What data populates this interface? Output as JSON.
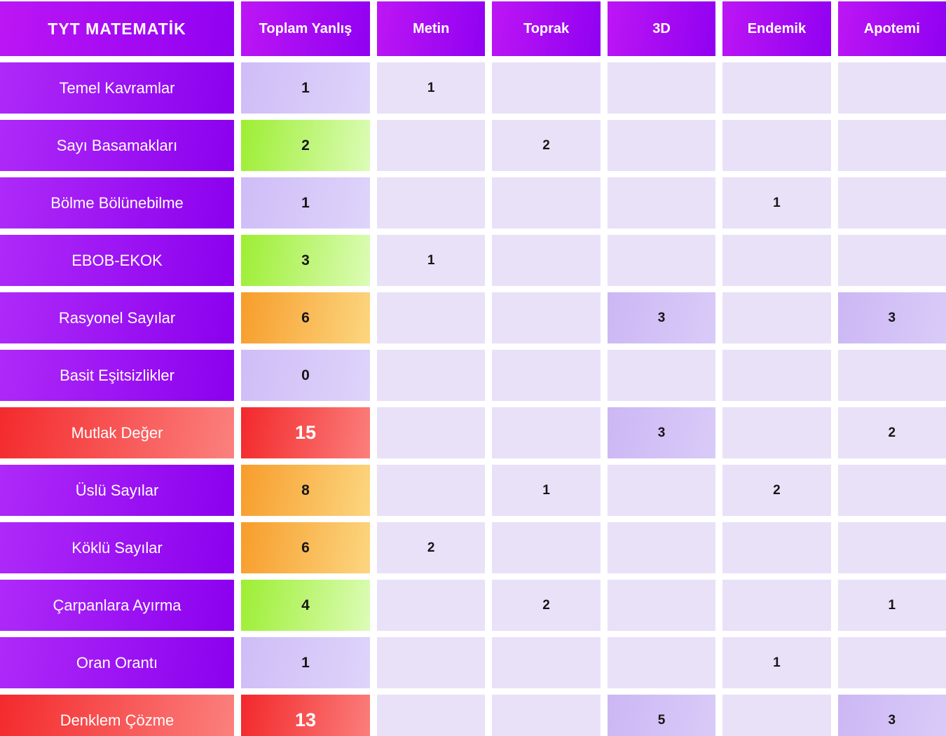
{
  "table": {
    "title": "TYT MATEMATİK",
    "columns": [
      "Toplam Yanlış",
      "Metin",
      "Toprak",
      "3D",
      "Endemik",
      "Apotemi"
    ],
    "rows": [
      {
        "topic": "Temel Kavramlar",
        "row_variant": "purple",
        "total": "1",
        "total_level": "lavender",
        "cells": [
          "1",
          "",
          "",
          "",
          ""
        ]
      },
      {
        "topic": "Sayı Basamakları",
        "row_variant": "purple",
        "total": "2",
        "total_level": "green",
        "cells": [
          "",
          "2",
          "",
          "",
          ""
        ]
      },
      {
        "topic": "Bölme Bölünebilme",
        "row_variant": "purple",
        "total": "1",
        "total_level": "lavender",
        "cells": [
          "",
          "",
          "",
          "1",
          ""
        ]
      },
      {
        "topic": "EBOB-EKOK",
        "row_variant": "purple",
        "total": "3",
        "total_level": "green",
        "cells": [
          "1",
          "",
          "",
          "",
          ""
        ]
      },
      {
        "topic": "Rasyonel Sayılar",
        "row_variant": "purple",
        "total": "6",
        "total_level": "orange",
        "cells": [
          "",
          "",
          "3",
          "",
          "3"
        ]
      },
      {
        "topic": "Basit Eşitsizlikler",
        "row_variant": "purple",
        "total": "0",
        "total_level": "lavender",
        "cells": [
          "",
          "",
          "",
          "",
          ""
        ]
      },
      {
        "topic": "Mutlak Değer",
        "row_variant": "red",
        "total": "15",
        "total_level": "red",
        "cells": [
          "",
          "",
          "3",
          "",
          "2"
        ]
      },
      {
        "topic": "Üslü Sayılar",
        "row_variant": "purple",
        "total": "8",
        "total_level": "orange",
        "cells": [
          "",
          "1",
          "",
          "2",
          ""
        ]
      },
      {
        "topic": "Köklü Sayılar",
        "row_variant": "purple",
        "total": "6",
        "total_level": "orange",
        "cells": [
          "2",
          "",
          "",
          "",
          ""
        ]
      },
      {
        "topic": "Çarpanlara Ayırma",
        "row_variant": "purple",
        "total": "4",
        "total_level": "green",
        "cells": [
          "",
          "2",
          "",
          "",
          "1"
        ]
      },
      {
        "topic": "Oran Orantı",
        "row_variant": "purple",
        "total": "1",
        "total_level": "lavender",
        "cells": [
          "",
          "",
          "",
          "1",
          ""
        ]
      },
      {
        "topic": "Denklem Çözme",
        "row_variant": "red",
        "total": "13",
        "total_level": "red",
        "cells": [
          "",
          "",
          "5",
          "",
          "3"
        ]
      }
    ],
    "colors": {
      "header_gradient": [
        "#bd16f4",
        "#9001f1"
      ],
      "topic_gradient": [
        "#ae2af8",
        "#8b00ee"
      ],
      "red_gradient": [
        "#f3282b",
        "#fb7f7c"
      ],
      "green_gradient": [
        "#9dee33",
        "#dcfcb7"
      ],
      "orange_gradient": [
        "#f79d2b",
        "#fcd680"
      ],
      "total_lavender_gradient": [
        "#cfbcf7",
        "#ded4fa"
      ],
      "cell_background": "#e9e1f8",
      "cell_highlight_gradient": [
        "#ccb7f4",
        "#d9cbf8"
      ],
      "number_text": "#161616",
      "header_text": "#ffffff"
    }
  },
  "chart_data": {
    "type": "heatmap",
    "title": "TYT MATEMATİK",
    "columns": [
      "Toplam Yanlış",
      "Metin",
      "Toprak",
      "3D",
      "Endemik",
      "Apotemi"
    ],
    "rows": [
      "Temel Kavramlar",
      "Sayı Basamakları",
      "Bölme Bölünebilme",
      "EBOB-EKOK",
      "Rasyonel Sayılar",
      "Basit Eşitsizlikler",
      "Mutlak Değer",
      "Üslü Sayılar",
      "Köklü Sayılar",
      "Çarpanlara Ayırma",
      "Oran Orantı",
      "Denklem Çözme"
    ],
    "values": [
      [
        1,
        1,
        null,
        null,
        null,
        null
      ],
      [
        2,
        null,
        2,
        null,
        null,
        null
      ],
      [
        1,
        null,
        null,
        null,
        1,
        null
      ],
      [
        3,
        1,
        null,
        null,
        null,
        null
      ],
      [
        6,
        null,
        null,
        3,
        null,
        3
      ],
      [
        0,
        null,
        null,
        null,
        null,
        null
      ],
      [
        15,
        null,
        null,
        3,
        null,
        2
      ],
      [
        8,
        null,
        1,
        null,
        2,
        null
      ],
      [
        6,
        2,
        null,
        null,
        null,
        null
      ],
      [
        4,
        null,
        2,
        null,
        null,
        1
      ],
      [
        1,
        null,
        null,
        null,
        1,
        null
      ],
      [
        13,
        null,
        null,
        5,
        null,
        3
      ]
    ],
    "legend": "Toplam Yanlış color scale: 0-1 lavender, 2-4 green, 5-9 orange, 10+ red; publisher cells with value >= 3 highlighted darker lavender",
    "grid": false,
    "legend_position": "none"
  }
}
